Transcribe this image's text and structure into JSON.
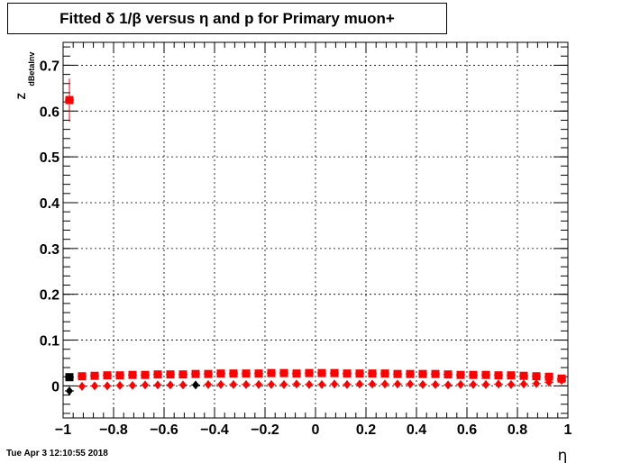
{
  "title": "Fitted δ 1/β versus η and p for Primary muon+",
  "datestamp": "Tue Apr  3 12:10:55 2018",
  "chart_data": {
    "type": "scatter",
    "xlabel": "η",
    "ylabel_main": "Z",
    "ylabel_sub": "dBetaInv",
    "xlim": [
      -1,
      1
    ],
    "ylim": [
      -0.07,
      0.75
    ],
    "grid": true,
    "xticks": [
      -1,
      -0.8,
      -0.6,
      -0.4,
      -0.2,
      0,
      0.2,
      0.4,
      0.6,
      0.8,
      1
    ],
    "xtick_labels": [
      "−1",
      "−0.8",
      "−0.6",
      "−0.4",
      "−0.2",
      "0",
      "0.2",
      "0.4",
      "0.6",
      "0.8",
      "1"
    ],
    "yticks": [
      0,
      0.1,
      0.2,
      0.3,
      0.4,
      0.5,
      0.6,
      0.7
    ],
    "ytick_labels": [
      "0",
      "0.1",
      "0.2",
      "0.3",
      "0.4",
      "0.5",
      "0.6",
      "0.7"
    ],
    "series": [
      {
        "marker": "diamond",
        "color": "#000000",
        "x": [
          -0.975,
          -0.475
        ],
        "y": [
          -0.011,
          0.002
        ]
      },
      {
        "marker": "square",
        "color": "#000000",
        "x": [
          -0.975
        ],
        "y": [
          0.019
        ]
      },
      {
        "marker": "diamond",
        "color": "#ff0000",
        "x": [
          -0.925,
          -0.875,
          -0.825,
          -0.775,
          -0.725,
          -0.675,
          -0.625,
          -0.575,
          -0.525,
          -0.425,
          -0.375,
          -0.325,
          -0.275,
          -0.225,
          -0.175,
          -0.125,
          -0.075,
          -0.025,
          0.025,
          0.075,
          0.125,
          0.175,
          0.225,
          0.275,
          0.325,
          0.375,
          0.425,
          0.475,
          0.525,
          0.575,
          0.625,
          0.675,
          0.725,
          0.775,
          0.825,
          0.875,
          0.925,
          0.975
        ],
        "y": [
          -0.001,
          0.0,
          0.0,
          0.001,
          0.001,
          0.002,
          0.002,
          0.002,
          0.002,
          0.003,
          0.003,
          0.003,
          0.003,
          0.003,
          0.003,
          0.003,
          0.004,
          0.003,
          0.003,
          0.004,
          0.003,
          0.004,
          0.004,
          0.004,
          0.004,
          0.004,
          0.003,
          0.003,
          0.002,
          0.003,
          0.003,
          0.003,
          0.004,
          0.003,
          0.004,
          0.005,
          0.008,
          0.012
        ]
      },
      {
        "marker": "square",
        "color": "#ff0000",
        "x": [
          -0.975,
          -0.925,
          -0.875,
          -0.825,
          -0.775,
          -0.725,
          -0.675,
          -0.625,
          -0.575,
          -0.525,
          -0.475,
          -0.425,
          -0.375,
          -0.325,
          -0.275,
          -0.225,
          -0.175,
          -0.125,
          -0.075,
          -0.025,
          0.025,
          0.075,
          0.125,
          0.175,
          0.225,
          0.275,
          0.325,
          0.375,
          0.425,
          0.475,
          0.525,
          0.575,
          0.625,
          0.675,
          0.725,
          0.775,
          0.825,
          0.875,
          0.925,
          0.975
        ],
        "y": [
          0.624,
          0.021,
          0.022,
          0.023,
          0.023,
          0.024,
          0.024,
          0.025,
          0.025,
          0.025,
          0.026,
          0.026,
          0.027,
          0.027,
          0.027,
          0.027,
          0.028,
          0.028,
          0.027,
          0.028,
          0.028,
          0.028,
          0.027,
          0.027,
          0.027,
          0.027,
          0.026,
          0.026,
          0.026,
          0.026,
          0.025,
          0.024,
          0.024,
          0.024,
          0.023,
          0.023,
          0.022,
          0.021,
          0.02,
          0.016
        ],
        "yerr": [
          0.047,
          0.001,
          0.001,
          0.001,
          0.001,
          0.001,
          0.001,
          0.001,
          0.001,
          0.001,
          0.001,
          0.001,
          0.001,
          0.001,
          0.001,
          0.001,
          0.001,
          0.001,
          0.001,
          0.001,
          0.001,
          0.001,
          0.001,
          0.001,
          0.001,
          0.001,
          0.001,
          0.001,
          0.001,
          0.001,
          0.001,
          0.001,
          0.001,
          0.001,
          0.001,
          0.001,
          0.001,
          0.001,
          0.001,
          0.003
        ]
      }
    ]
  }
}
